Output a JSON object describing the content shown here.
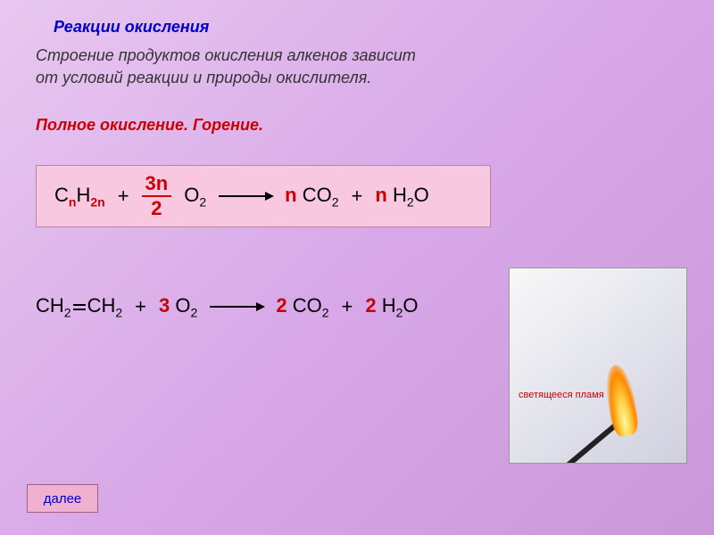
{
  "title": "Реакции окисления",
  "subtitle_line1": "Строение продуктов окисления алкенов зависит",
  "subtitle_line2": "от условий реакции и природы окислителя.",
  "section_title": "Полное окисление. Горение.",
  "general_formula": {
    "reactant1_C": "C",
    "reactant1_sub_n1": "n",
    "reactant1_H": "H",
    "reactant1_sub_2n": "2n",
    "plus1": "+",
    "frac_num": "3n",
    "frac_den": "2",
    "O": "O",
    "O_sub": "2",
    "coef_n1": "n",
    "CO": "CO",
    "CO_sub": "2",
    "plus2": "+",
    "coef_n2": "n",
    "H2O_H": "H",
    "H2O_sub": "2",
    "H2O_O": "O"
  },
  "specific_formula": {
    "CH2_1_C": "CH",
    "CH2_1_sub": "2",
    "CH2_2_C": "CH",
    "CH2_2_sub": "2",
    "plus1": "+",
    "coef_3": "3",
    "O": "O",
    "O_sub": "2",
    "coef_2a": "2",
    "CO": "CO",
    "CO_sub": "2",
    "plus2": "+",
    "coef_2b": "2",
    "H2O_H": "H",
    "H2O_sub": "2",
    "H2O_O": "O"
  },
  "flame_label": "светящееся пламя",
  "next_button": "далее"
}
